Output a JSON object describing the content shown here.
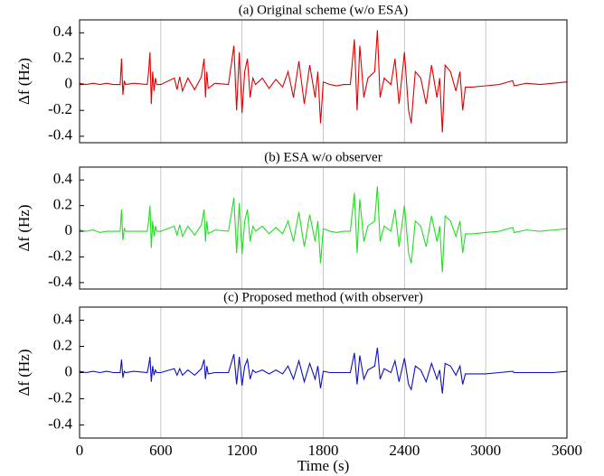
{
  "chart_data": [
    {
      "type": "line",
      "title": "(a) Original  scheme (w/o ESA)",
      "ylabel": "Δf (Hz)",
      "color": "#e00000",
      "xlim": [
        0,
        3600
      ],
      "xticks": [
        0,
        600,
        1200,
        1800,
        2400,
        3000,
        3600
      ],
      "show_xticklabels": false,
      "ylim": [
        -0.45,
        0.5
      ],
      "yticks": [
        -0.4,
        -0.2,
        0,
        0.2,
        0.4
      ],
      "grid": true,
      "x": [
        0,
        50,
        100,
        150,
        200,
        250,
        300,
        310,
        320,
        330,
        340,
        400,
        500,
        510,
        520,
        530,
        540,
        550,
        560,
        570,
        600,
        700,
        720,
        740,
        760,
        800,
        850,
        900,
        920,
        930,
        940,
        950,
        1000,
        1100,
        1140,
        1160,
        1180,
        1200,
        1220,
        1240,
        1260,
        1280,
        1300,
        1350,
        1400,
        1450,
        1500,
        1540,
        1580,
        1620,
        1660,
        1700,
        1740,
        1760,
        1780,
        1800,
        1850,
        1900,
        1950,
        2000,
        2030,
        2050,
        2070,
        2100,
        2130,
        2180,
        2200,
        2220,
        2250,
        2300,
        2330,
        2360,
        2400,
        2430,
        2450,
        2480,
        2520,
        2560,
        2600,
        2640,
        2660,
        2680,
        2700,
        2740,
        2780,
        2810,
        2830,
        2850,
        2900,
        3000,
        3100,
        3200,
        3210,
        3300,
        3400,
        3500,
        3600
      ],
      "values": [
        0.01,
        0.0,
        0.01,
        0.0,
        0.01,
        0.0,
        0.0,
        0.2,
        -0.08,
        0.03,
        0.0,
        0.01,
        0.0,
        0.1,
        0.25,
        -0.15,
        0.1,
        -0.05,
        0.05,
        0.0,
        0.0,
        0.05,
        -0.04,
        0.06,
        -0.05,
        0.05,
        -0.04,
        0.06,
        0.2,
        -0.1,
        0.1,
        -0.03,
        0.01,
        0.0,
        0.3,
        -0.2,
        0.25,
        -0.22,
        0.1,
        0.2,
        -0.1,
        0.05,
        0.0,
        0.05,
        -0.03,
        0.04,
        -0.02,
        0.1,
        -0.1,
        0.18,
        -0.15,
        0.15,
        -0.1,
        0.1,
        -0.3,
        0.02,
        0.0,
        -0.01,
        0.0,
        0.0,
        0.35,
        -0.2,
        0.3,
        -0.1,
        0.05,
        0.1,
        0.42,
        -0.1,
        0.05,
        0.0,
        0.2,
        -0.15,
        0.25,
        -0.2,
        -0.3,
        0.1,
        0.05,
        -0.15,
        0.15,
        -0.1,
        0.05,
        -0.37,
        0.15,
        0.1,
        -0.05,
        0.1,
        -0.2,
        -0.02,
        -0.02,
        -0.01,
        0.0,
        0.03,
        -0.01,
        0.01,
        0.0,
        0.01,
        0.02
      ]
    },
    {
      "type": "line",
      "title": "(b) ESA w/o observer",
      "ylabel": "Δf (Hz)",
      "color": "#22dd22",
      "xlim": [
        0,
        3600
      ],
      "xticks": [
        0,
        600,
        1200,
        1800,
        2400,
        3000,
        3600
      ],
      "show_xticklabels": false,
      "ylim": [
        -0.45,
        0.5
      ],
      "yticks": [
        -0.4,
        -0.2,
        0,
        0.2,
        0.4
      ],
      "grid": true,
      "x": [
        0,
        50,
        100,
        150,
        200,
        250,
        300,
        310,
        320,
        330,
        340,
        400,
        500,
        510,
        520,
        530,
        540,
        550,
        560,
        570,
        600,
        700,
        720,
        740,
        760,
        800,
        850,
        900,
        920,
        930,
        940,
        950,
        1000,
        1100,
        1140,
        1160,
        1180,
        1200,
        1220,
        1240,
        1260,
        1280,
        1300,
        1350,
        1400,
        1450,
        1500,
        1540,
        1580,
        1620,
        1660,
        1700,
        1740,
        1760,
        1780,
        1800,
        1850,
        1900,
        1950,
        2000,
        2030,
        2050,
        2070,
        2100,
        2130,
        2180,
        2200,
        2220,
        2250,
        2300,
        2330,
        2360,
        2400,
        2430,
        2450,
        2480,
        2520,
        2560,
        2600,
        2640,
        2660,
        2680,
        2700,
        2740,
        2780,
        2810,
        2830,
        2850,
        2900,
        3000,
        3100,
        3200,
        3210,
        3300,
        3400,
        3500,
        3600
      ],
      "values": [
        0.01,
        0.0,
        0.01,
        -0.01,
        0.0,
        0.0,
        0.0,
        0.17,
        -0.07,
        0.02,
        0.0,
        0.0,
        0.0,
        0.08,
        0.2,
        -0.13,
        0.08,
        -0.04,
        0.04,
        0.0,
        0.0,
        0.04,
        -0.03,
        0.05,
        -0.04,
        0.04,
        -0.03,
        0.05,
        0.17,
        -0.08,
        0.08,
        -0.02,
        0.01,
        0.0,
        0.26,
        -0.17,
        0.22,
        -0.18,
        0.08,
        0.17,
        -0.08,
        0.04,
        0.0,
        0.04,
        -0.02,
        0.03,
        -0.02,
        0.08,
        -0.08,
        0.15,
        -0.12,
        0.13,
        -0.08,
        0.08,
        -0.25,
        0.02,
        0.0,
        -0.01,
        0.0,
        0.0,
        0.3,
        -0.17,
        0.25,
        -0.08,
        0.04,
        0.08,
        0.35,
        -0.08,
        0.04,
        0.0,
        0.17,
        -0.12,
        0.2,
        -0.17,
        -0.25,
        0.08,
        0.04,
        -0.12,
        0.12,
        -0.08,
        0.04,
        -0.32,
        0.12,
        0.08,
        -0.04,
        0.08,
        -0.17,
        -0.02,
        -0.02,
        -0.01,
        0.0,
        0.03,
        -0.01,
        0.01,
        0.0,
        0.01,
        0.02
      ]
    },
    {
      "type": "line",
      "title": "(c) Proposed method (with observer)",
      "ylabel": "Δf (Hz)",
      "xlabel": "Time (s)",
      "color": "#1010c0",
      "xlim": [
        0,
        3600
      ],
      "xticks": [
        0,
        600,
        1200,
        1800,
        2400,
        3000,
        3600
      ],
      "show_xticklabels": true,
      "ylim": [
        -0.5,
        0.5
      ],
      "yticks": [
        -0.4,
        -0.2,
        0,
        0.2,
        0.4
      ],
      "grid": true,
      "x": [
        0,
        50,
        100,
        150,
        200,
        250,
        300,
        310,
        320,
        330,
        340,
        400,
        500,
        510,
        520,
        530,
        540,
        550,
        560,
        570,
        600,
        700,
        720,
        740,
        760,
        800,
        850,
        900,
        920,
        930,
        940,
        950,
        1000,
        1100,
        1140,
        1160,
        1180,
        1200,
        1220,
        1240,
        1260,
        1280,
        1300,
        1350,
        1400,
        1450,
        1500,
        1540,
        1580,
        1620,
        1660,
        1700,
        1740,
        1760,
        1780,
        1800,
        1850,
        1900,
        1950,
        2000,
        2030,
        2050,
        2070,
        2100,
        2130,
        2180,
        2200,
        2220,
        2250,
        2300,
        2330,
        2360,
        2400,
        2430,
        2450,
        2480,
        2520,
        2560,
        2600,
        2640,
        2660,
        2680,
        2700,
        2740,
        2780,
        2810,
        2830,
        2850,
        2900,
        3000,
        3100,
        3200,
        3210,
        3300,
        3400,
        3500,
        3600
      ],
      "values": [
        0.01,
        0.0,
        0.01,
        0.0,
        0.01,
        0.0,
        0.0,
        0.1,
        -0.04,
        0.01,
        0.0,
        0.01,
        0.0,
        0.05,
        0.12,
        -0.07,
        0.05,
        -0.02,
        0.02,
        0.0,
        0.0,
        0.03,
        -0.02,
        0.03,
        -0.02,
        0.02,
        -0.02,
        0.03,
        0.1,
        -0.05,
        0.05,
        -0.01,
        0.0,
        0.0,
        0.14,
        -0.09,
        0.12,
        -0.1,
        0.05,
        0.1,
        -0.05,
        0.02,
        0.0,
        0.02,
        -0.01,
        0.02,
        -0.01,
        0.05,
        -0.05,
        0.09,
        -0.07,
        0.07,
        -0.05,
        0.05,
        -0.12,
        0.01,
        0.0,
        0.0,
        0.0,
        0.0,
        0.15,
        -0.09,
        0.13,
        -0.05,
        0.02,
        0.05,
        0.19,
        -0.05,
        0.03,
        0.0,
        0.09,
        -0.07,
        0.11,
        -0.09,
        -0.13,
        0.05,
        0.02,
        -0.07,
        0.07,
        -0.05,
        0.02,
        -0.16,
        0.07,
        0.05,
        -0.02,
        0.05,
        -0.09,
        -0.01,
        -0.01,
        -0.01,
        0.0,
        0.01,
        0.0,
        0.0,
        0.0,
        0.0,
        0.01
      ]
    }
  ]
}
